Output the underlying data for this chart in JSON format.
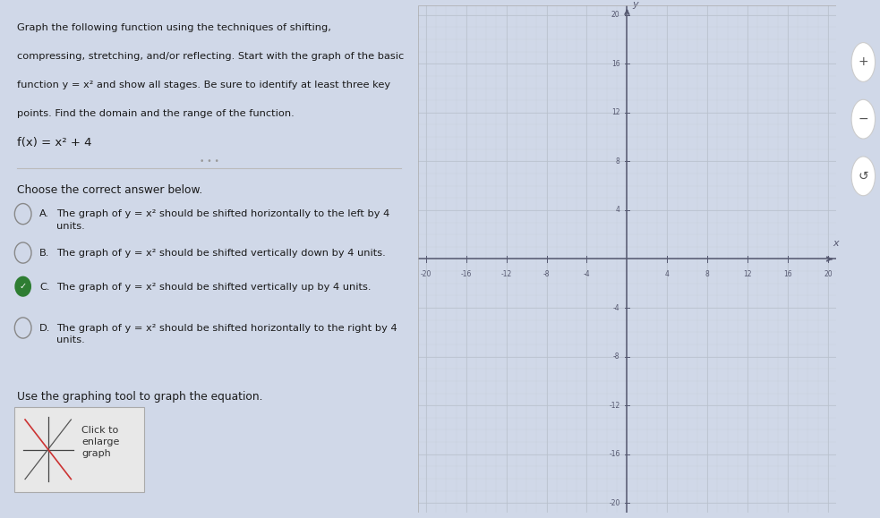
{
  "bg_color": "#d0d8e8",
  "left_panel_bg": "#f2f2f2",
  "grid_bg": "#f8f8f8",
  "title_text_lines": [
    "Graph the following function using the techniques of shifting,",
    "compressing, stretching, and/or reflecting. Start with the graph of the basic",
    "function y = x² and show all stages. Be sure to identify at least three key",
    "points. Find the domain and the range of the function."
  ],
  "function_text": "f(x) = x² + 4",
  "prompt_text": "Choose the correct answer below.",
  "options": [
    {
      "label": "A.",
      "text": "The graph of y = x² should be shifted horizontally to the left by 4\nunits.",
      "selected": false
    },
    {
      "label": "B.",
      "text": "The graph of y = x² should be shifted vertically down by 4 units.",
      "selected": false
    },
    {
      "label": "C.",
      "text": "The graph of y = x² should be shifted vertically up by 4 units.",
      "selected": true
    },
    {
      "label": "D.",
      "text": "The graph of y = x² should be shifted horizontally to the right by 4\nunits.",
      "selected": false
    }
  ],
  "bottom_text": "Use the graphing tool to graph the equation.",
  "axis_min": -20,
  "axis_max": 20,
  "axis_ticks": [
    -20,
    -16,
    -12,
    -8,
    -4,
    4,
    8,
    12,
    16,
    20
  ],
  "grid_color": "#c8cdd8",
  "axis_color": "#555870",
  "tick_label_color": "#555870",
  "checkmark_color": "#2e7d32",
  "circle_color": "#888888",
  "separator_color": "#bbbbbb",
  "icon_bg": "#ffffff"
}
